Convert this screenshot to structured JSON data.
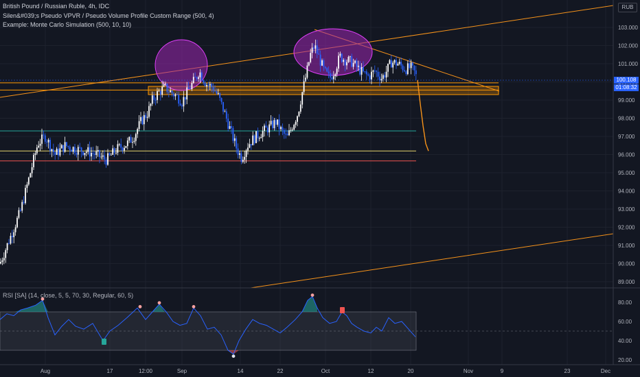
{
  "header": {
    "symbol_line": "British Pound / Russian Ruble, 4h, IDC",
    "indicator_1": "Silen&#039;s Pseudo VPVR / Pseudo Volume Profile Custom Range (500, 4)",
    "indicator_2": "Example: Monte Carlo Simulation (500, 10, 10)"
  },
  "currency": "RUB",
  "price_axis": {
    "labels": [
      "103.000",
      "102.000",
      "101.000",
      "100.000",
      "99.000",
      "98.000",
      "97.000",
      "96.000",
      "95.000",
      "94.000",
      "93.000",
      "92.000",
      "91.000",
      "90.000",
      "89.000"
    ],
    "current_price": "100.108",
    "countdown": "01:08:32"
  },
  "rsi": {
    "legend": "RSI [SA] (14, close, 5, 5, 70, 30, Regular, 60, 5)",
    "axis_labels": [
      "80.00",
      "60.00",
      "40.00",
      "20.00"
    ]
  },
  "time_axis": [
    "Aug",
    "17",
    "12:00",
    "Sep",
    "14",
    "22",
    "Oct",
    "12",
    "20",
    "Nov",
    "9",
    "23",
    "Dec"
  ],
  "colors": {
    "background": "#131722",
    "up": "#ffffff",
    "down": "#2962ff",
    "trendline": "#f7931a",
    "zone": "#ff9800",
    "ellipse_fill": "#9c27b0",
    "ellipse_stroke": "#e040fb",
    "green_level": "#26a69a",
    "yellow_level": "#e6d56c",
    "red_level": "#ef5350",
    "rsi_line": "#2962ff",
    "rsi_band": "#434651"
  },
  "chart_data": {
    "type": "candlestick",
    "timeframe": "4h",
    "price_range": [
      88.5,
      104.0
    ],
    "price_path": [
      [
        0,
        90.0
      ],
      [
        30,
        92.9
      ],
      [
        55,
        96.6
      ],
      [
        66,
        97.0
      ],
      [
        80,
        96.0
      ],
      [
        95,
        96.5
      ],
      [
        110,
        96.3
      ],
      [
        125,
        96.2
      ],
      [
        140,
        96.0
      ],
      [
        155,
        95.7
      ],
      [
        170,
        96.3
      ],
      [
        185,
        96.6
      ],
      [
        195,
        97.0
      ],
      [
        205,
        97.8
      ],
      [
        215,
        98.3
      ],
      [
        222,
        99.0
      ],
      [
        230,
        99.4
      ],
      [
        240,
        99.7
      ],
      [
        250,
        99.4
      ],
      [
        258,
        99.2
      ],
      [
        265,
        98.9
      ],
      [
        275,
        99.6
      ],
      [
        285,
        100.2
      ],
      [
        290,
        100.6
      ],
      [
        300,
        99.9
      ],
      [
        310,
        99.7
      ],
      [
        318,
        99.2
      ],
      [
        326,
        98.4
      ],
      [
        335,
        97.4
      ],
      [
        345,
        96.3
      ],
      [
        352,
        95.8
      ],
      [
        360,
        96.5
      ],
      [
        370,
        96.9
      ],
      [
        380,
        97.2
      ],
      [
        392,
        97.5
      ],
      [
        402,
        97.8
      ],
      [
        410,
        97.3
      ],
      [
        418,
        96.9
      ],
      [
        426,
        97.6
      ],
      [
        434,
        98.3
      ],
      [
        440,
        99.4
      ],
      [
        446,
        100.4
      ],
      [
        452,
        101.5
      ],
      [
        458,
        102.0
      ],
      [
        465,
        101.3
      ],
      [
        472,
        100.6
      ],
      [
        480,
        100.2
      ],
      [
        487,
        100.6
      ],
      [
        495,
        101.4
      ],
      [
        503,
        101.2
      ],
      [
        512,
        101.1
      ],
      [
        520,
        100.8
      ],
      [
        528,
        100.5
      ],
      [
        537,
        100.3
      ],
      [
        546,
        100.6
      ],
      [
        556,
        100.2
      ],
      [
        563,
        100.6
      ],
      [
        570,
        101.1
      ],
      [
        580,
        101.0
      ],
      [
        590,
        100.7
      ],
      [
        598,
        100.8
      ],
      [
        604,
        100.5
      ],
      [
        608,
        100.1
      ]
    ],
    "forecast_path": [
      [
        608,
        100.1
      ],
      [
        612,
        98.8
      ],
      [
        616,
        97.6
      ],
      [
        620,
        96.6
      ],
      [
        624,
        96.2
      ]
    ],
    "horizontal_levels": [
      {
        "name": "zone-top",
        "price": 99.95,
        "color": "orange"
      },
      {
        "name": "zone-bottom",
        "price": 99.55,
        "color": "orange"
      },
      {
        "name": "green-level",
        "price": 97.3,
        "color": "green"
      },
      {
        "name": "yellow-level",
        "price": 96.2,
        "color": "yellow"
      },
      {
        "name": "red-level",
        "price": 95.65,
        "color": "red"
      }
    ],
    "rsi": {
      "range": [
        18,
        87
      ],
      "upper_band": 70,
      "lower_band": 30,
      "mid": 50,
      "path": [
        [
          0,
          62
        ],
        [
          10,
          68
        ],
        [
          20,
          66
        ],
        [
          30,
          72
        ],
        [
          40,
          74
        ],
        [
          52,
          77
        ],
        [
          62,
          82
        ],
        [
          70,
          64
        ],
        [
          80,
          46
        ],
        [
          90,
          55
        ],
        [
          100,
          62
        ],
        [
          110,
          55
        ],
        [
          122,
          52
        ],
        [
          135,
          58
        ],
        [
          150,
          40
        ],
        [
          160,
          50
        ],
        [
          172,
          56
        ],
        [
          185,
          64
        ],
        [
          200,
          74
        ],
        [
          212,
          62
        ],
        [
          222,
          70
        ],
        [
          232,
          78
        ],
        [
          242,
          70
        ],
        [
          252,
          60
        ],
        [
          262,
          56
        ],
        [
          272,
          58
        ],
        [
          282,
          74
        ],
        [
          292,
          66
        ],
        [
          302,
          52
        ],
        [
          312,
          54
        ],
        [
          322,
          46
        ],
        [
          332,
          30
        ],
        [
          340,
          26
        ],
        [
          348,
          40
        ],
        [
          358,
          52
        ],
        [
          368,
          62
        ],
        [
          378,
          58
        ],
        [
          388,
          56
        ],
        [
          398,
          52
        ],
        [
          408,
          48
        ],
        [
          418,
          54
        ],
        [
          430,
          62
        ],
        [
          440,
          70
        ],
        [
          448,
          82
        ],
        [
          455,
          86
        ],
        [
          462,
          74
        ],
        [
          470,
          64
        ],
        [
          480,
          58
        ],
        [
          490,
          60
        ],
        [
          498,
          70
        ],
        [
          505,
          66
        ],
        [
          512,
          58
        ],
        [
          520,
          54
        ],
        [
          530,
          50
        ],
        [
          540,
          48
        ],
        [
          548,
          54
        ],
        [
          556,
          50
        ],
        [
          566,
          64
        ],
        [
          575,
          58
        ],
        [
          585,
          60
        ],
        [
          595,
          52
        ],
        [
          605,
          44
        ]
      ]
    }
  }
}
